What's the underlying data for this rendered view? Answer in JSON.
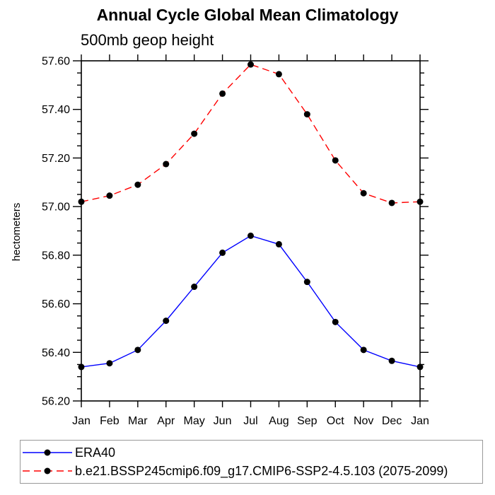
{
  "page": {
    "background": "#ffffff"
  },
  "chart_data": {
    "type": "line",
    "title": "Annual Cycle Global Mean Climatology",
    "subtitle": "500mb geop height",
    "ylabel": "hectometers",
    "xlabel": "",
    "categories": [
      "Jan",
      "Feb",
      "Mar",
      "Apr",
      "May",
      "Jun",
      "Jul",
      "Aug",
      "Sep",
      "Oct",
      "Nov",
      "Dec",
      "Jan"
    ],
    "ylim": [
      56.2,
      57.6
    ],
    "ytick_major": 0.2,
    "ytick_minor": 0.05,
    "ytick_labels": [
      "56.20",
      "56.40",
      "56.60",
      "56.80",
      "57.00",
      "57.20",
      "57.40",
      "57.60"
    ],
    "grid": false,
    "legend_position": "bottom",
    "series": [
      {
        "name": "ERA40",
        "color": "#0000ff",
        "line_style": "solid",
        "marker": "circle",
        "marker_color": "#000000",
        "values": [
          56.34,
          56.355,
          56.41,
          56.53,
          56.67,
          56.81,
          56.88,
          56.845,
          56.69,
          56.525,
          56.41,
          56.365,
          56.34
        ]
      },
      {
        "name": "b.e21.BSSP245cmip6.f09_g17.CMIP6-SSP2-4.5.103 (2075-2099)",
        "color": "#ff0000",
        "line_style": "dashed",
        "marker": "circle",
        "marker_color": "#000000",
        "values": [
          57.02,
          57.045,
          57.09,
          57.175,
          57.3,
          57.465,
          57.585,
          57.545,
          57.38,
          57.19,
          57.055,
          57.015,
          57.02
        ]
      }
    ]
  }
}
